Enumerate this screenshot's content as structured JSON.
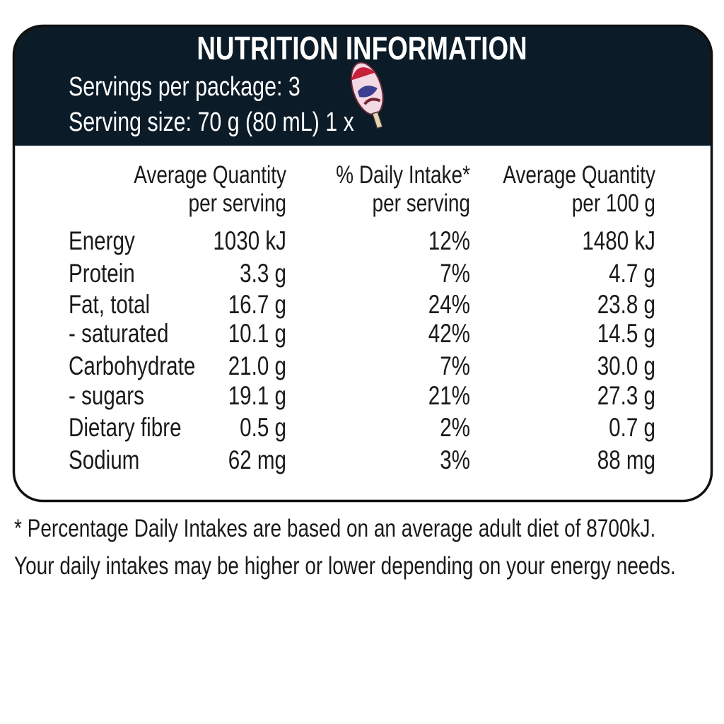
{
  "header": {
    "title": "NUTRITION INFORMATION",
    "servings_per_package": "Servings per package: 3",
    "serving_size": "Serving size: 70 g (80 mL) 1 x"
  },
  "table": {
    "column_headers": [
      [
        "Average Quantity",
        "per serving"
      ],
      [
        "% Daily Intake*",
        "per serving"
      ],
      [
        "Average Quantity",
        "per 100 g"
      ]
    ],
    "rows": [
      [
        "Energy",
        "1030 kJ",
        "12%",
        "1480 kJ"
      ],
      [
        "Protein",
        "3.3 g",
        "7%",
        "4.7 g"
      ],
      [
        "Fat, total",
        "16.7 g",
        "24%",
        "23.8 g"
      ],
      [
        "- saturated",
        "10.1 g",
        "42%",
        "14.5 g"
      ],
      [
        "Carbohydrate",
        "21.0 g",
        "7%",
        "30.0 g"
      ],
      [
        "- sugars",
        "19.1 g",
        "21%",
        "27.3 g"
      ],
      [
        "Dietary fibre",
        "0.5 g",
        "2%",
        "0.7 g"
      ],
      [
        "Sodium",
        "62 mg",
        "3%",
        "88 mg"
      ]
    ]
  },
  "footnote": [
    "* Percentage Daily Intakes are based on an average adult diet of 8700kJ.",
    "Your daily intakes may be higher or lower depending on your energy needs."
  ]
}
